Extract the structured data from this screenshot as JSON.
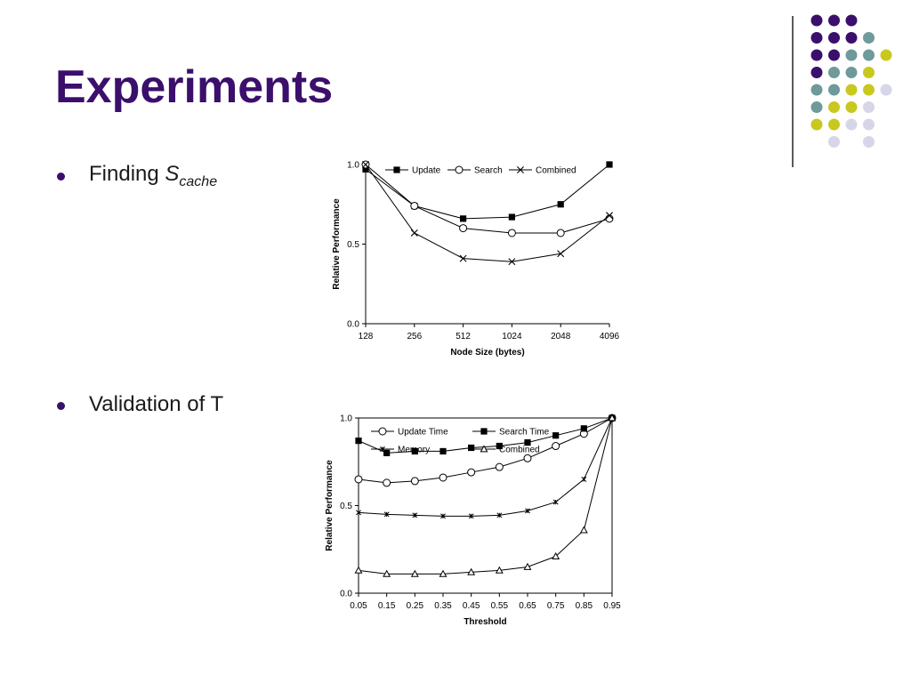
{
  "slide": {
    "title": "Experiments",
    "bullets": [
      {
        "main": "Finding ",
        "italic": "S",
        "sub": "cache"
      },
      {
        "main": "Validation of T"
      }
    ],
    "colors": {
      "title": "#3b0f6b",
      "purple": "#3b0f6b",
      "teal": "#6e9a9a",
      "yellow": "#c8c81e",
      "lavender": "#d6d6e8"
    }
  },
  "decor_dots": [
    [
      "purple",
      "purple",
      "purple",
      null,
      null
    ],
    [
      "purple",
      "purple",
      "purple",
      "teal",
      null
    ],
    [
      "purple",
      "purple",
      "teal",
      "teal",
      "yellow"
    ],
    [
      "purple",
      "teal",
      "teal",
      "yellow",
      null
    ],
    [
      "teal",
      "teal",
      "yellow",
      "yellow",
      "lavender"
    ],
    [
      "teal",
      "yellow",
      "yellow",
      "lavender",
      null
    ],
    [
      "yellow",
      "yellow",
      "lavender",
      "lavender",
      null
    ],
    [
      null,
      "lavender",
      null,
      "lavender",
      null
    ]
  ],
  "chart_data": [
    {
      "type": "line",
      "categories": [
        "128",
        "256",
        "512",
        "1024",
        "2048",
        "4096"
      ],
      "xlabel": "Node Size (bytes)",
      "ylabel": "Relative Performance",
      "ylim": [
        0,
        1.0
      ],
      "yticks": [
        "0.0",
        "0.5",
        "1.0"
      ],
      "legend": "top",
      "series": [
        {
          "name": "Update",
          "marker": "filled-square",
          "values": [
            0.97,
            0.74,
            0.66,
            0.67,
            0.75,
            1.0
          ]
        },
        {
          "name": "Search",
          "marker": "open-circle",
          "values": [
            1.0,
            0.74,
            0.6,
            0.57,
            0.57,
            0.66
          ]
        },
        {
          "name": "Combined",
          "marker": "x",
          "values": [
            1.0,
            0.57,
            0.41,
            0.39,
            0.44,
            0.68
          ]
        }
      ]
    },
    {
      "type": "line",
      "categories": [
        "0.05",
        "0.15",
        "0.25",
        "0.35",
        "0.45",
        "0.55",
        "0.65",
        "0.75",
        "0.85",
        "0.95"
      ],
      "xlabel": "Threshold",
      "ylabel": "Relative Performance",
      "ylim": [
        0,
        1.0
      ],
      "yticks": [
        "0.0",
        "0.5",
        "1.0"
      ],
      "legend": "top",
      "series": [
        {
          "name": "Update Time",
          "marker": "open-circle",
          "values": [
            0.65,
            0.63,
            0.64,
            0.66,
            0.69,
            0.72,
            0.77,
            0.84,
            0.91,
            1.0
          ]
        },
        {
          "name": "Search Time",
          "marker": "filled-square",
          "values": [
            0.87,
            0.8,
            0.81,
            0.81,
            0.83,
            0.84,
            0.86,
            0.9,
            0.94,
            1.0
          ]
        },
        {
          "name": "Memory",
          "marker": "star",
          "values": [
            0.46,
            0.45,
            0.445,
            0.44,
            0.44,
            0.445,
            0.47,
            0.52,
            0.65,
            1.0
          ]
        },
        {
          "name": "Combined",
          "marker": "triangle",
          "values": [
            0.13,
            0.11,
            0.11,
            0.11,
            0.12,
            0.13,
            0.15,
            0.21,
            0.36,
            1.0
          ]
        }
      ]
    }
  ]
}
